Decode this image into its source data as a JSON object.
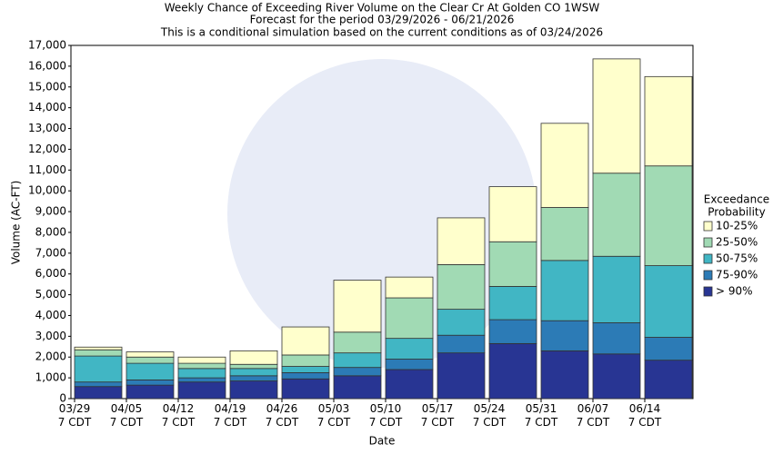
{
  "chart_data": {
    "type": "stacked_bar",
    "title": [
      "Weekly Chance of Exceeding River Volume on the Clear Cr At Golden CO 1WSW",
      "Forecast for the period 03/29/2026 - 06/21/2026",
      "This is a conditional simulation based on the current conditions as of 03/24/2026"
    ],
    "x_label": "Date",
    "y_label": "Volume (AC-FT)",
    "legend_title": [
      "Exceedance",
      "Probability"
    ],
    "categories": [
      "03/29\n7 CDT",
      "04/05\n7 CDT",
      "04/12\n7 CDT",
      "04/19\n7 CDT",
      "04/26\n7 CDT",
      "05/03\n7 CDT",
      "05/10\n7 CDT",
      "05/17\n7 CDT",
      "05/24\n7 CDT",
      "05/31\n7 CDT",
      "06/07\n7 CDT",
      "06/14\n7 CDT"
    ],
    "series": [
      {
        "name": "> 90%",
        "color": "#283593",
        "values": [
          580,
          650,
          800,
          850,
          950,
          1100,
          1400,
          2200,
          2650,
          2300,
          2150,
          1850
        ]
      },
      {
        "name": "75-90%",
        "color": "#2c7bb6",
        "values": [
          220,
          250,
          200,
          250,
          300,
          400,
          500,
          850,
          1150,
          1450,
          1500,
          1100
        ]
      },
      {
        "name": "50-75%",
        "color": "#41b6c4",
        "values": [
          1250,
          800,
          450,
          350,
          300,
          700,
          1000,
          1250,
          1600,
          2900,
          3200,
          3450
        ]
      },
      {
        "name": "25-50%",
        "color": "#a1dab4",
        "values": [
          300,
          300,
          250,
          200,
          550,
          1000,
          1950,
          2150,
          2150,
          2550,
          4000,
          4800
        ]
      },
      {
        "name": "10-25%",
        "color": "#ffffcc",
        "values": [
          130,
          250,
          300,
          650,
          1350,
          2500,
          1000,
          2250,
          2650,
          4050,
          5500,
          4300
        ]
      }
    ],
    "ylim": [
      0,
      17000
    ],
    "yticks": [
      0,
      {
        "value": 1000,
        "label": "1,000"
      },
      {
        "value": 2000,
        "label": "2,000"
      },
      {
        "value": 3000,
        "label": "3,000"
      },
      {
        "value": 4000,
        "label": "4,000"
      },
      {
        "value": 5000,
        "label": "5,000"
      },
      {
        "value": 6000,
        "label": "6,000"
      },
      {
        "value": 7000,
        "label": "7,000"
      },
      {
        "value": 8000,
        "label": "8,000"
      },
      {
        "value": 9000,
        "label": "9,000"
      },
      {
        "value": 10000,
        "label": "10,000"
      },
      {
        "value": 11000,
        "label": "11,000"
      },
      {
        "value": 12000,
        "label": "12,000"
      },
      {
        "value": 13000,
        "label": "13,000"
      },
      {
        "value": 14000,
        "label": "14,000"
      },
      {
        "value": 15000,
        "label": "15,000"
      },
      {
        "value": 16000,
        "label": "16,000"
      },
      {
        "value": 17000,
        "label": "17,000"
      }
    ],
    "grid": false
  }
}
